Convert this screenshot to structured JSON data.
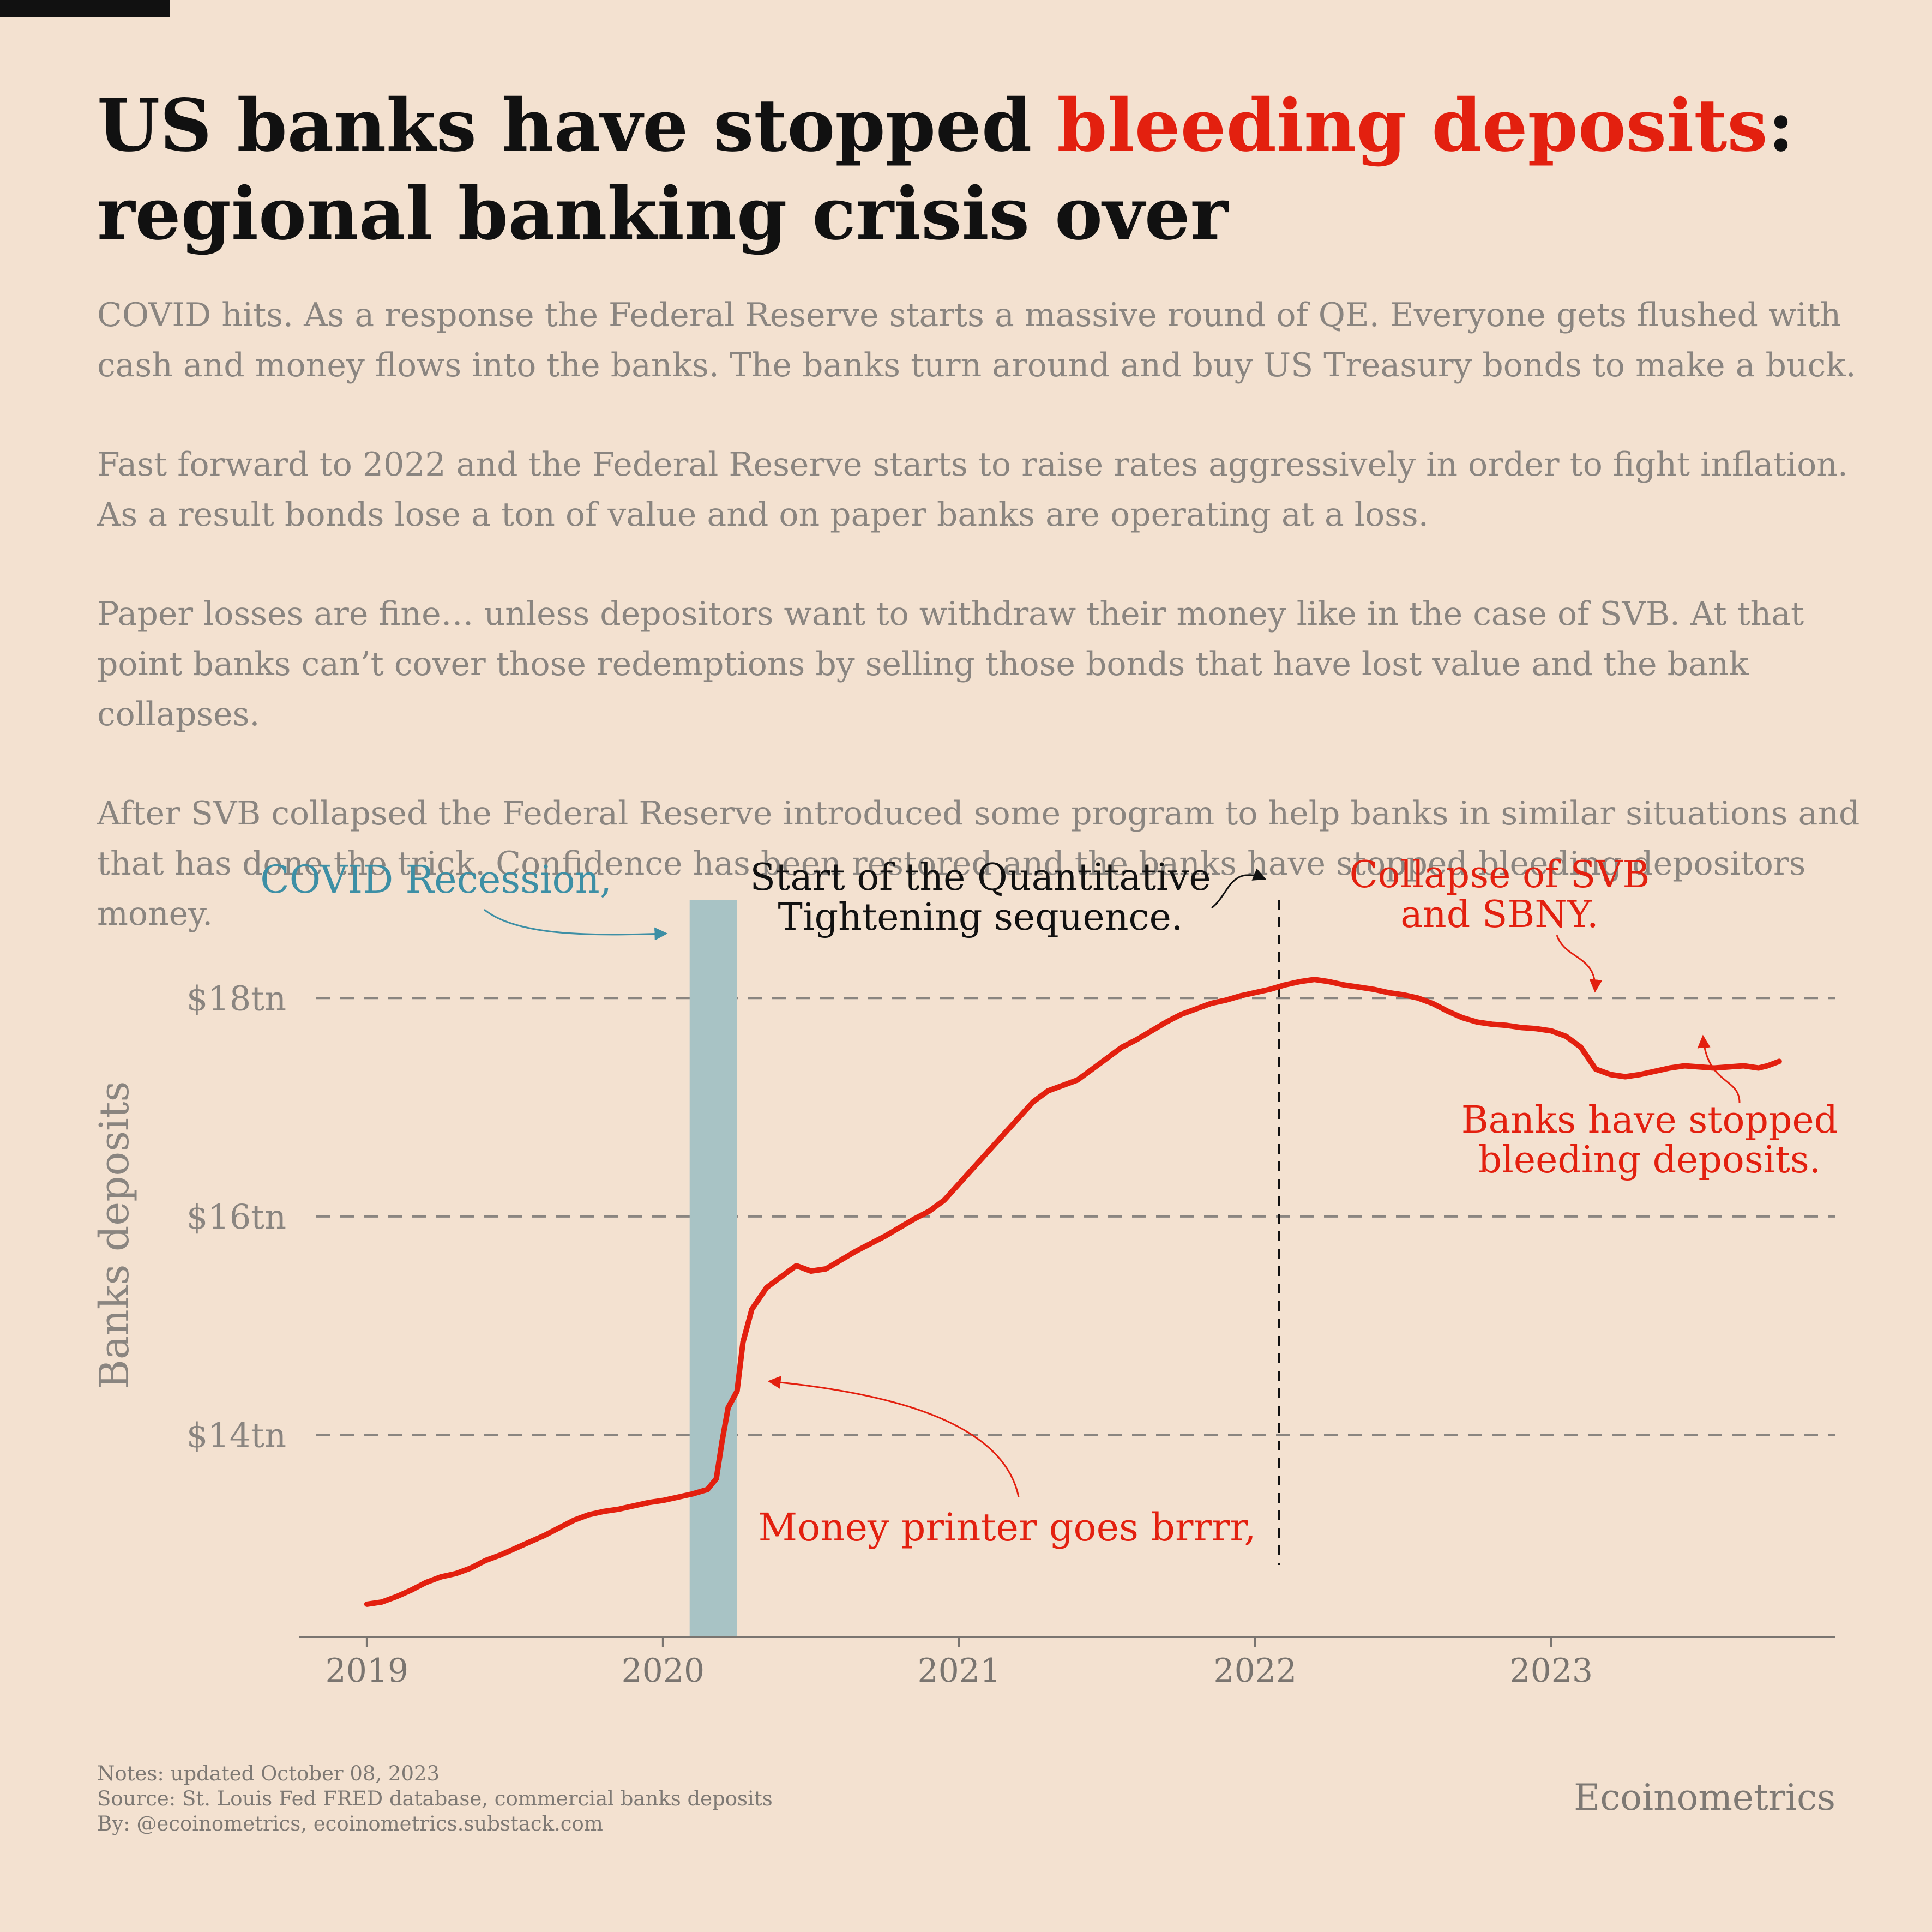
{
  "title": {
    "part1": "US banks have stopped ",
    "highlight": "bleeding deposits",
    "part2": ":",
    "line2": "regional banking crisis over"
  },
  "paragraphs": [
    "COVID hits. As a response the Federal Reserve starts a massive round of QE. Everyone gets flushed with cash and money flows into the banks. The banks turn around and buy US Treasury bonds to make a buck.",
    "Fast forward to 2022 and the Federal Reserve starts to raise rates aggressively in order to fight inflation. As a result bonds lose a ton of value and on paper banks are operating at a loss.",
    "Paper losses are fine… unless depositors want to withdraw their money like in the case of SVB. At that point banks can’t cover those redemptions by selling those bonds that have lost value and the bank collapses.",
    "After SVB collapsed the Federal Reserve introduced some program to help banks in similar situations and that has done the trick. Confidence has been restored and the banks have stopped bleeding depositors money."
  ],
  "chart_data": {
    "type": "line",
    "title": "",
    "xlabel": "",
    "ylabel": "Banks deposits",
    "x_ticks": [
      "2019",
      "2020",
      "2021",
      "2022",
      "2023"
    ],
    "y_ticks": [
      "$14tn",
      "$16tn",
      "$18tn"
    ],
    "y_tick_values": [
      14,
      16,
      18
    ],
    "xlim": [
      2018.77,
      2023.96
    ],
    "ylim": [
      12.15,
      18.95
    ],
    "grid": "horizontal-dashed",
    "line_color": "#e3200f",
    "recession_color": "#a8c3c5",
    "series": [
      {
        "x": [
          2019.0,
          2019.05,
          2019.1,
          2019.15,
          2019.2,
          2019.25,
          2019.3,
          2019.35,
          2019.4,
          2019.45,
          2019.5,
          2019.55,
          2019.6,
          2019.65,
          2019.7,
          2019.75,
          2019.8,
          2019.85,
          2019.9,
          2019.95,
          2020.0,
          2020.05,
          2020.1,
          2020.15,
          2020.18,
          2020.2,
          2020.22,
          2020.25,
          2020.27,
          2020.3,
          2020.35,
          2020.4,
          2020.45,
          2020.5,
          2020.55,
          2020.6,
          2020.65,
          2020.7,
          2020.75,
          2020.8,
          2020.85,
          2020.9,
          2020.95,
          2021.0,
          2021.05,
          2021.1,
          2021.15,
          2021.2,
          2021.25,
          2021.3,
          2021.35,
          2021.4,
          2021.45,
          2021.5,
          2021.55,
          2021.6,
          2021.65,
          2021.7,
          2021.75,
          2021.8,
          2021.85,
          2021.9,
          2021.95,
          2022.0,
          2022.05,
          2022.1,
          2022.15,
          2022.2,
          2022.25,
          2022.3,
          2022.35,
          2022.4,
          2022.45,
          2022.5,
          2022.55,
          2022.6,
          2022.65,
          2022.7,
          2022.75,
          2022.8,
          2022.85,
          2022.9,
          2022.95,
          2023.0,
          2023.05,
          2023.1,
          2023.15,
          2023.2,
          2023.25,
          2023.3,
          2023.35,
          2023.4,
          2023.45,
          2023.5,
          2023.55,
          2023.6,
          2023.65,
          2023.7,
          2023.73,
          2023.77
        ],
        "y": [
          12.45,
          12.47,
          12.52,
          12.58,
          12.65,
          12.7,
          12.73,
          12.78,
          12.85,
          12.9,
          12.96,
          13.02,
          13.08,
          13.15,
          13.22,
          13.27,
          13.3,
          13.32,
          13.35,
          13.38,
          13.4,
          13.43,
          13.46,
          13.5,
          13.6,
          13.95,
          14.25,
          14.4,
          14.85,
          15.15,
          15.35,
          15.45,
          15.55,
          15.5,
          15.52,
          15.6,
          15.68,
          15.75,
          15.82,
          15.9,
          15.98,
          16.05,
          16.15,
          16.3,
          16.45,
          16.6,
          16.75,
          16.9,
          17.05,
          17.15,
          17.2,
          17.25,
          17.35,
          17.45,
          17.55,
          17.62,
          17.7,
          17.78,
          17.85,
          17.9,
          17.95,
          17.98,
          18.02,
          18.05,
          18.08,
          18.12,
          18.15,
          18.17,
          18.15,
          18.12,
          18.1,
          18.08,
          18.05,
          18.03,
          18.0,
          17.95,
          17.88,
          17.82,
          17.78,
          17.76,
          17.75,
          17.73,
          17.72,
          17.7,
          17.65,
          17.55,
          17.35,
          17.3,
          17.28,
          17.3,
          17.33,
          17.36,
          17.38,
          17.37,
          17.36,
          17.37,
          17.38,
          17.36,
          17.38,
          17.42
        ]
      }
    ],
    "recession": {
      "x_start": 2020.09,
      "x_end": 2020.25,
      "label": "COVID Recession,"
    },
    "annotations": [
      {
        "id": "qt",
        "lines": [
          "Start of the Quantitative",
          "Tightening sequence."
        ],
        "x": 2022.08,
        "color": "#111111"
      },
      {
        "id": "svb",
        "lines": [
          "Collapse of SVB",
          "and SBNY."
        ],
        "color": "#e3200f"
      },
      {
        "id": "stopped",
        "lines": [
          "Banks have stopped",
          "bleeding deposits."
        ],
        "color": "#e3200f"
      },
      {
        "id": "printer",
        "lines": [
          "Money printer goes brrrr,"
        ],
        "color": "#e3200f"
      }
    ]
  },
  "footer": {
    "notes": "Notes: updated October 08, 2023",
    "source": "Source: St. Louis Fed FRED database, commercial banks deposits",
    "by": "By: @ecoinometrics, ecoinometrics.substack.com",
    "brand": "Ecoinometrics"
  }
}
